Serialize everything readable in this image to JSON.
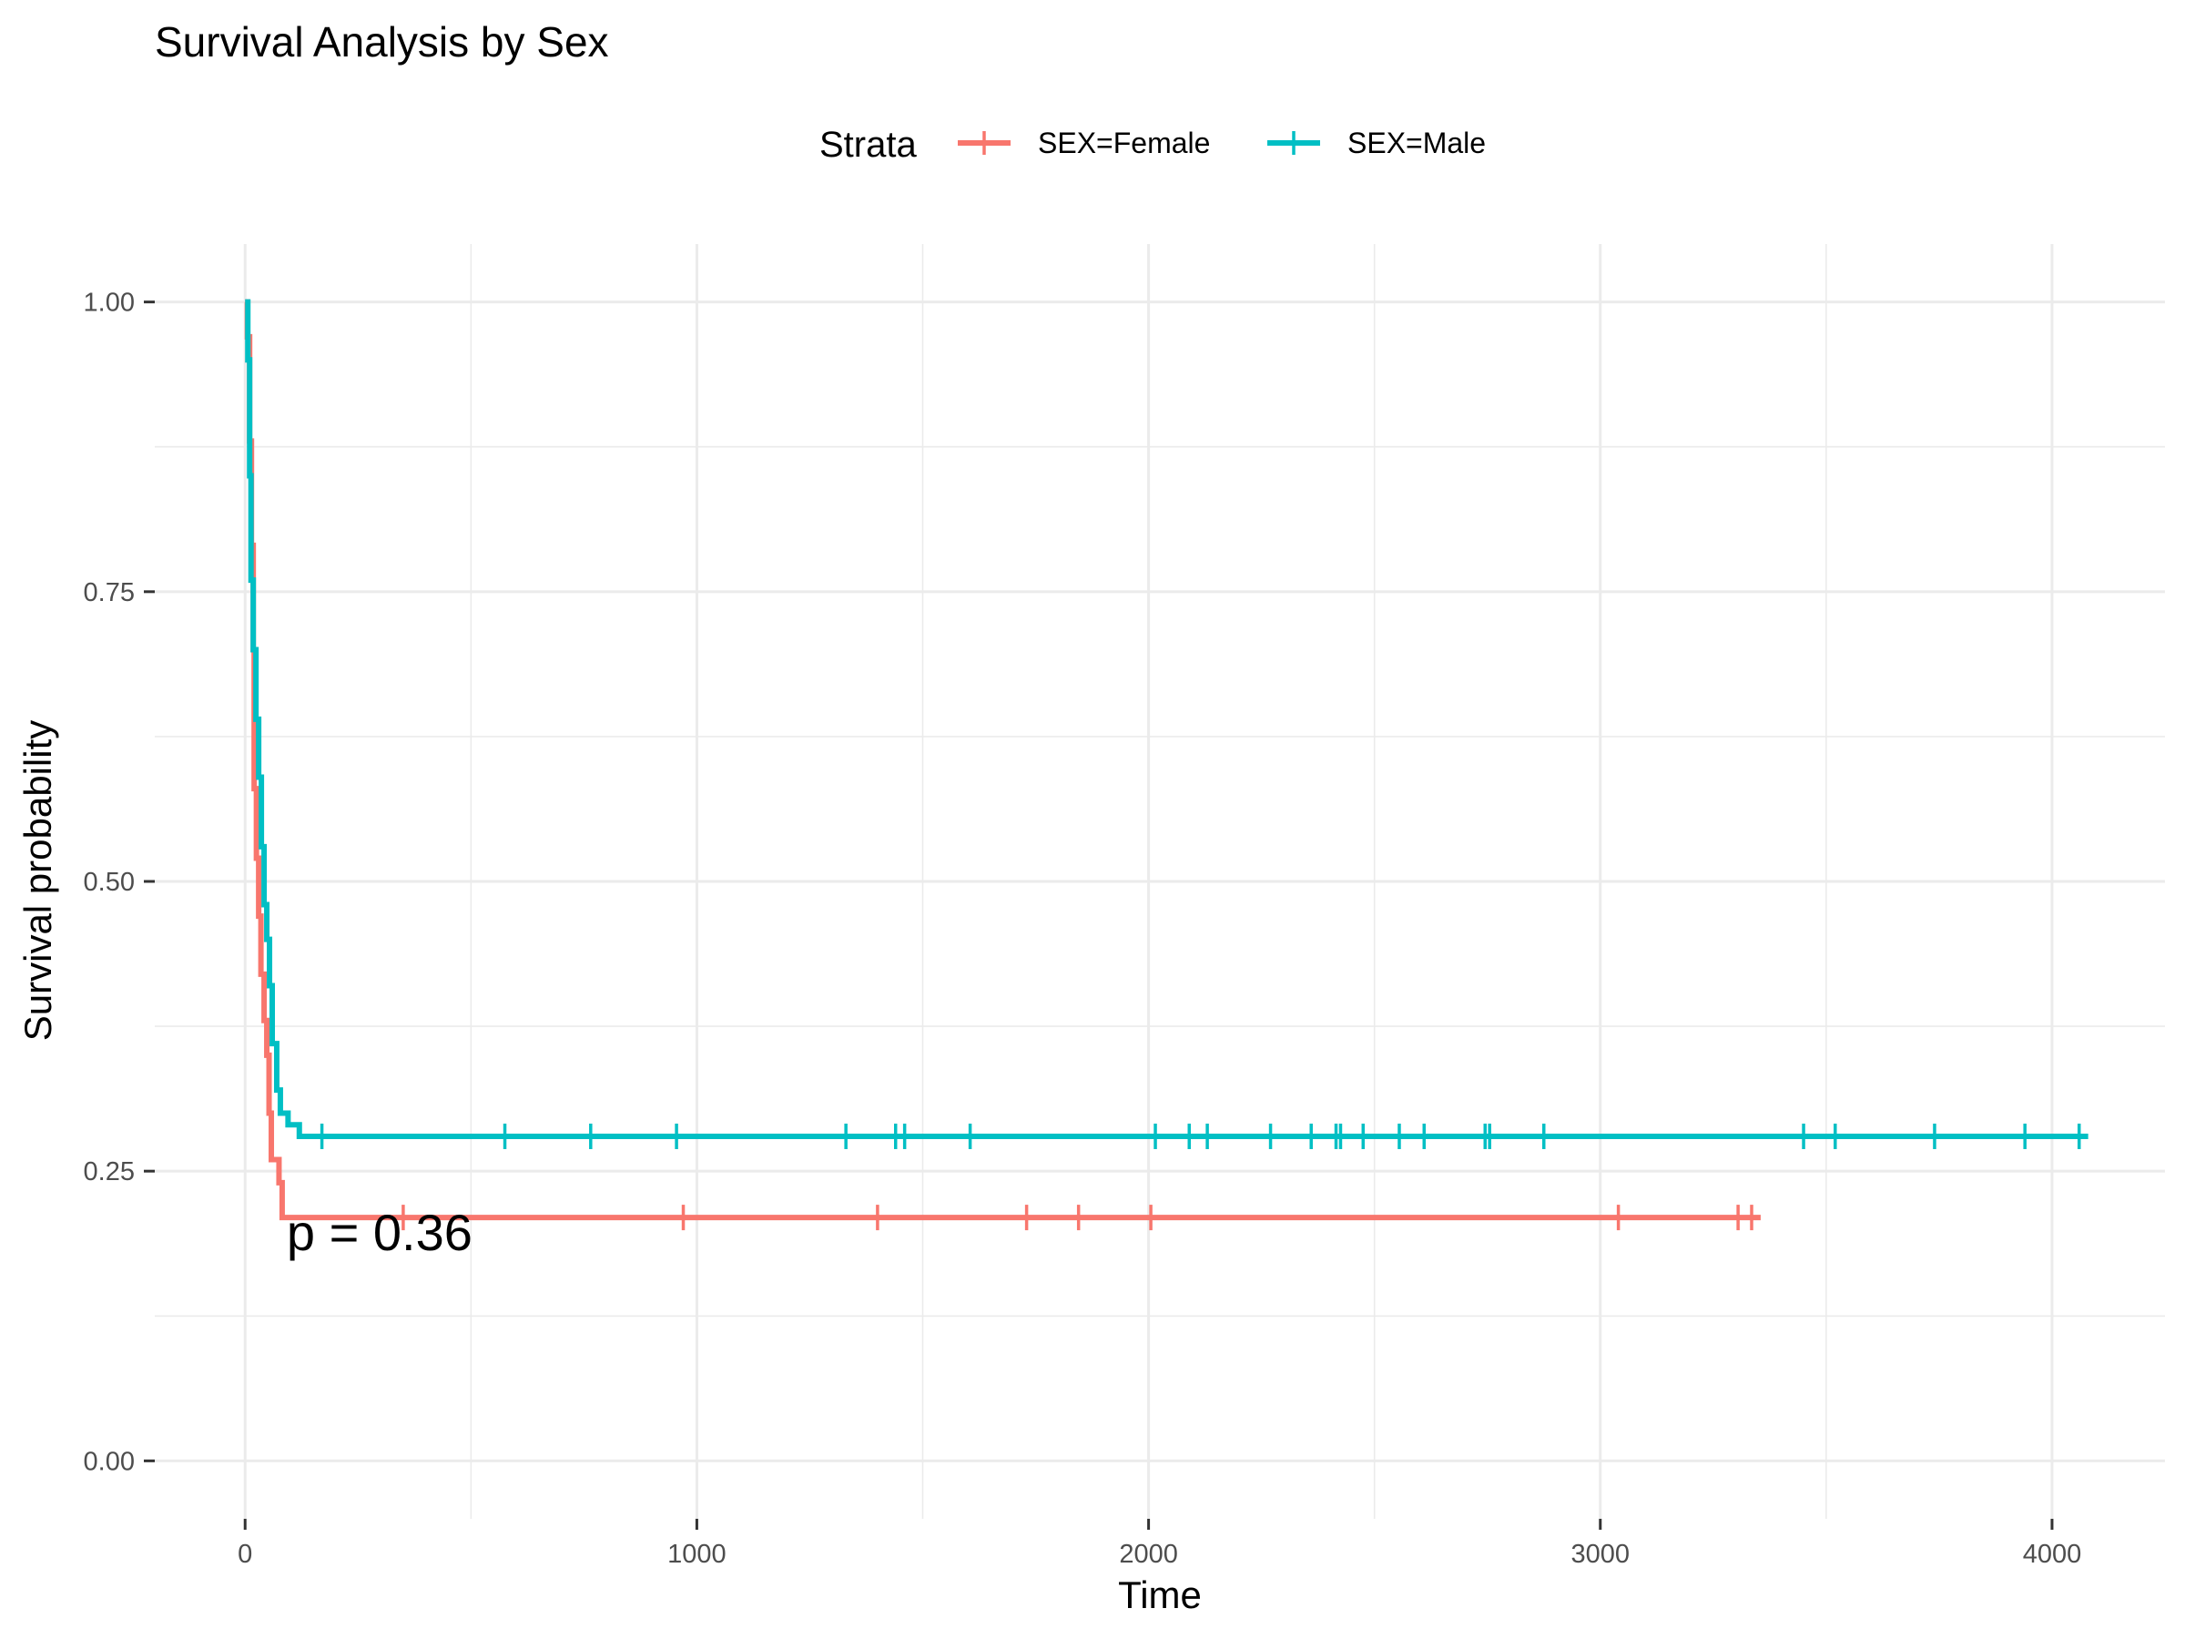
{
  "chart_data": {
    "type": "line",
    "title": "Survival Analysis by Sex",
    "xlabel": "Time",
    "ylabel": "Survival probability",
    "xlim": [
      -200,
      4250
    ],
    "ylim": [
      -0.05,
      1.05
    ],
    "x_ticks": [
      0,
      1000,
      2000,
      3000,
      4000
    ],
    "x_tick_labels": [
      "0",
      "1000",
      "2000",
      "3000",
      "4000"
    ],
    "y_ticks": [
      0,
      0.25,
      0.5,
      0.75,
      1.0
    ],
    "y_tick_labels": [
      "0.00",
      "0.25",
      "0.50",
      "0.75",
      "1.00"
    ],
    "grid": true,
    "legend": {
      "title": "Strata",
      "position": "top"
    },
    "annotation": {
      "text": "p = 0.36",
      "x": 80,
      "y": 0.21
    },
    "series": [
      {
        "name": "SEX=Female",
        "color": "#F8766D",
        "steps": [
          [
            0,
            1.0
          ],
          [
            5,
            0.97
          ],
          [
            10,
            0.88
          ],
          [
            14,
            0.79
          ],
          [
            18,
            0.7
          ],
          [
            20,
            0.58
          ],
          [
            25,
            0.52
          ],
          [
            30,
            0.47
          ],
          [
            35,
            0.42
          ],
          [
            42,
            0.38
          ],
          [
            48,
            0.35
          ],
          [
            53,
            0.3
          ],
          [
            58,
            0.26
          ],
          [
            75,
            0.24
          ],
          [
            82,
            0.21
          ],
          [
            3355,
            0.21
          ]
        ],
        "censor_times": [
          350,
          970,
          1400,
          1730,
          1845,
          2005,
          3040,
          3305,
          3335
        ]
      },
      {
        "name": "SEX=Male",
        "color": "#00BFC4",
        "steps": [
          [
            0,
            1.0
          ],
          [
            6,
            0.95
          ],
          [
            10,
            0.85
          ],
          [
            13,
            0.76
          ],
          [
            18,
            0.7
          ],
          [
            24,
            0.64
          ],
          [
            30,
            0.59
          ],
          [
            36,
            0.53
          ],
          [
            42,
            0.48
          ],
          [
            48,
            0.45
          ],
          [
            54,
            0.41
          ],
          [
            60,
            0.36
          ],
          [
            70,
            0.32
          ],
          [
            78,
            0.3
          ],
          [
            95,
            0.29
          ],
          [
            120,
            0.28
          ],
          [
            4080,
            0.28
          ]
        ],
        "censor_times": [
          170,
          575,
          765,
          955,
          1330,
          1440,
          1460,
          1605,
          2015,
          2090,
          2130,
          2270,
          2360,
          2415,
          2425,
          2475,
          2555,
          2610,
          2745,
          2755,
          2875,
          3450,
          3520,
          3740,
          3940,
          4060
        ]
      }
    ]
  }
}
